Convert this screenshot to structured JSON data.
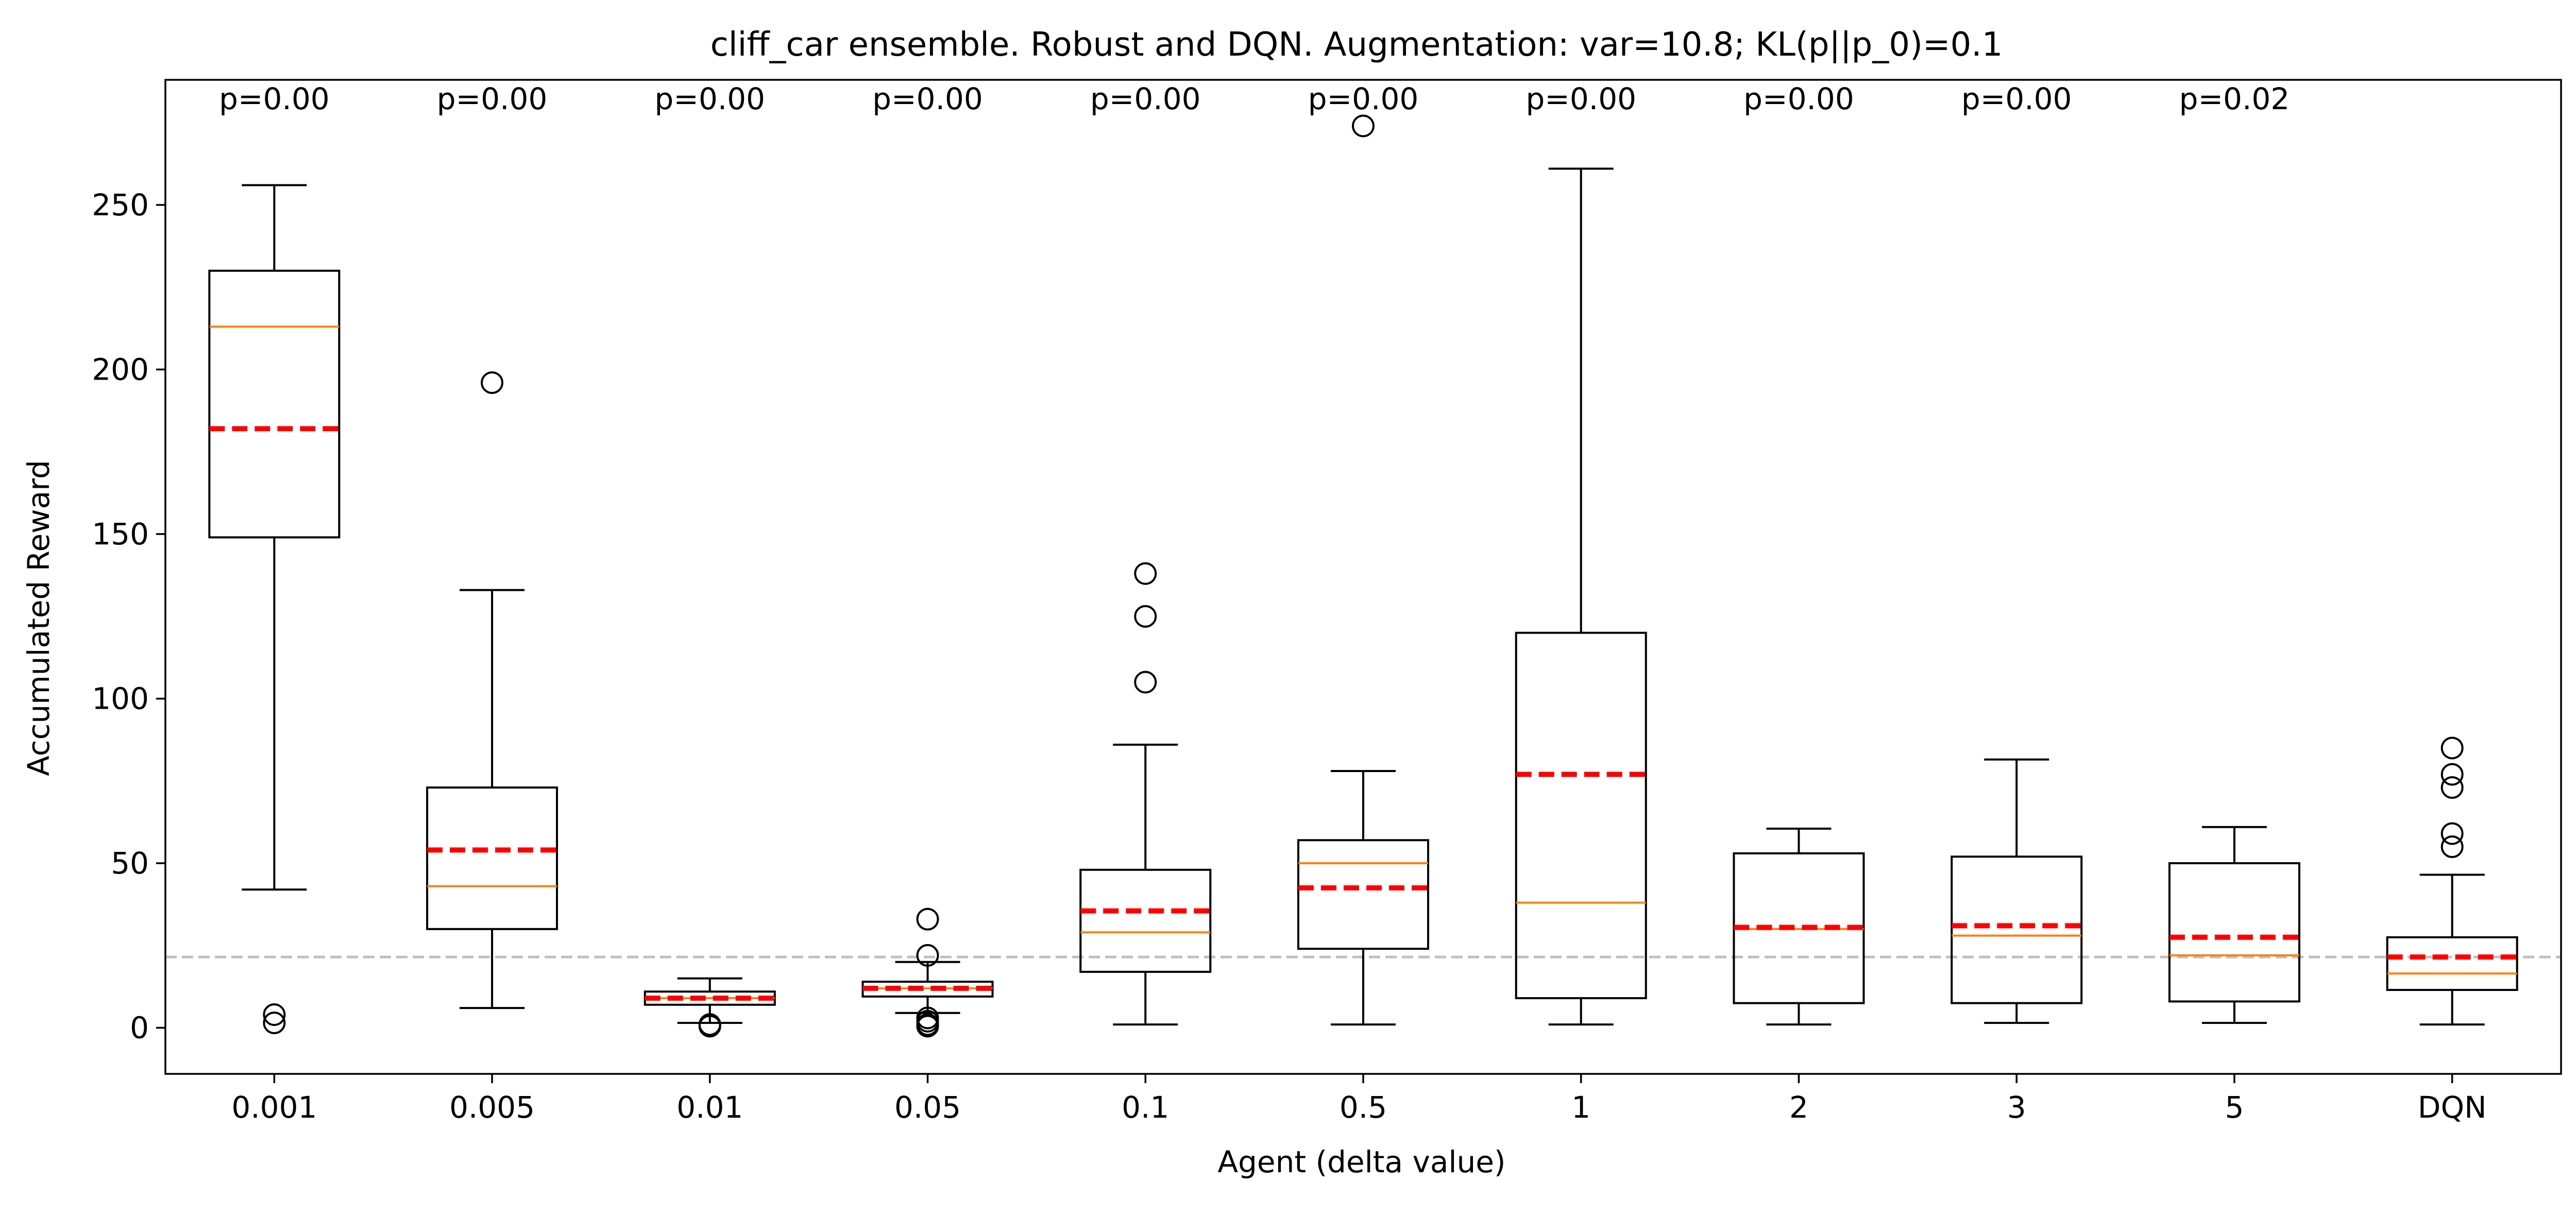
{
  "chart_data": {
    "type": "box",
    "title": "cliff_car ensemble. Robust and DQN. Augmentation: var=10.8; KL(p||p_0)=0.1",
    "xlabel": "Agent (delta value)",
    "ylabel": "Accumulated Reward",
    "ylim": [
      -14,
      288
    ],
    "yticks": [
      0,
      50,
      100,
      150,
      200,
      250
    ],
    "ytick_labels": [
      "0",
      "50",
      "100",
      "150",
      "200",
      "250"
    ],
    "reference_line": {
      "value": 21.5,
      "color": "#bfbfbf",
      "style": "dashed"
    },
    "colors": {
      "box": "#000000",
      "median": "#ff7f0e",
      "mean": "#ff0000",
      "reference": "#bfbfbf"
    },
    "categories": [
      "0.001",
      "0.005",
      "0.01",
      "0.05",
      "0.1",
      "0.5",
      "1",
      "2",
      "3",
      "5",
      "DQN"
    ],
    "p_values": [
      "p=0.00",
      "p=0.00",
      "p=0.00",
      "p=0.00",
      "p=0.00",
      "p=0.00",
      "p=0.00",
      "p=0.00",
      "p=0.00",
      "p=0.02",
      ""
    ],
    "boxes": [
      {
        "whisker_low": 42,
        "q1": 149,
        "median": 213,
        "q3": 230,
        "whisker_high": 256,
        "mean": 182,
        "outliers": [
          1.5,
          4
        ]
      },
      {
        "whisker_low": 6,
        "q1": 30,
        "median": 43,
        "q3": 73,
        "whisker_high": 133,
        "mean": 54,
        "outliers": [
          196
        ]
      },
      {
        "whisker_low": 1.5,
        "q1": 7,
        "median": 9,
        "q3": 11,
        "whisker_high": 15,
        "mean": 9,
        "outliers": [
          0.5,
          1
        ]
      },
      {
        "whisker_low": 4.5,
        "q1": 9.5,
        "median": 12,
        "q3": 14,
        "whisker_high": 20,
        "mean": 12,
        "outliers": [
          0.5,
          1,
          2,
          3,
          22,
          33
        ]
      },
      {
        "whisker_low": 1,
        "q1": 17,
        "median": 29,
        "q3": 48,
        "whisker_high": 86,
        "mean": 35.5,
        "outliers": [
          105,
          125,
          138
        ]
      },
      {
        "whisker_low": 1,
        "q1": 24,
        "median": 50,
        "q3": 57,
        "whisker_high": 78,
        "mean": 42.5,
        "outliers": [
          274
        ]
      },
      {
        "whisker_low": 1,
        "q1": 9,
        "median": 38,
        "q3": 120,
        "whisker_high": 261,
        "mean": 77,
        "outliers": []
      },
      {
        "whisker_low": 1,
        "q1": 7.5,
        "median": 30,
        "q3": 53,
        "whisker_high": 60.5,
        "mean": 30.5,
        "outliers": []
      },
      {
        "whisker_low": 1.5,
        "q1": 7.5,
        "median": 28,
        "q3": 52,
        "whisker_high": 81.5,
        "mean": 31,
        "outliers": []
      },
      {
        "whisker_low": 1.5,
        "q1": 8,
        "median": 22,
        "q3": 50,
        "whisker_high": 61,
        "mean": 27.5,
        "outliers": []
      },
      {
        "whisker_low": 1,
        "q1": 11.5,
        "median": 16.5,
        "q3": 27.5,
        "whisker_high": 46.5,
        "mean": 21.5,
        "outliers": [
          55,
          59,
          73,
          77,
          85
        ]
      }
    ]
  }
}
